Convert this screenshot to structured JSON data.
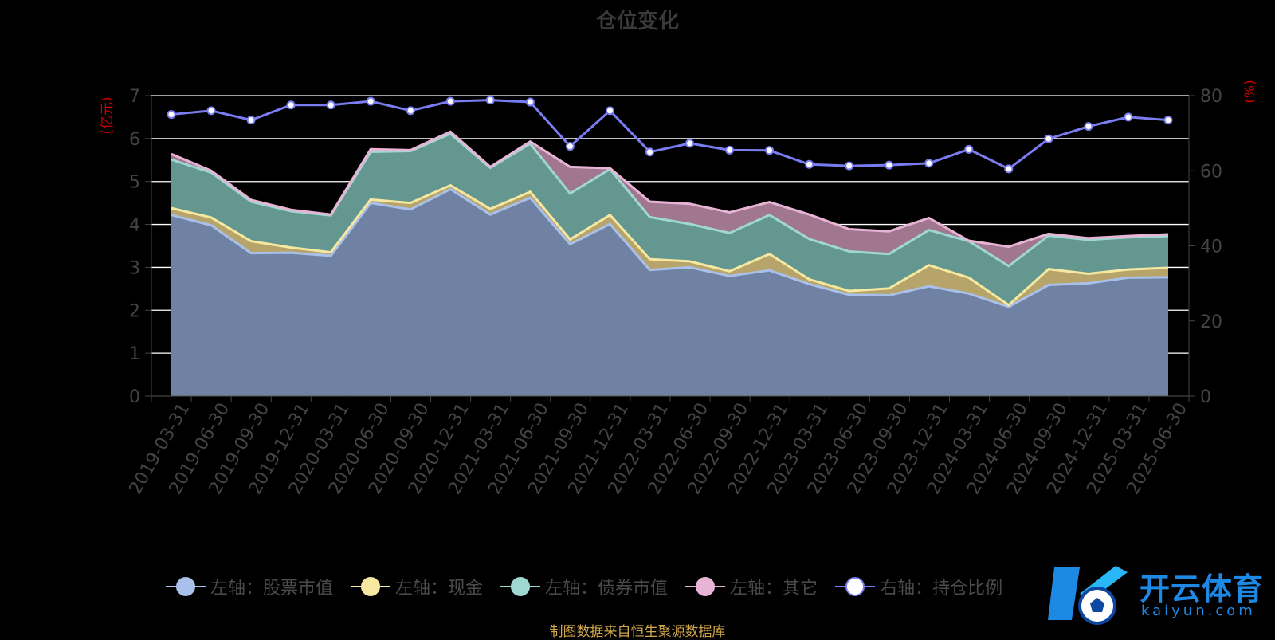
{
  "title": "仓位变化",
  "source_note": "制图数据来自恒生聚源数据库",
  "watermark": {
    "brand": "开云体育",
    "domain": "kaiyun.com"
  },
  "colors": {
    "stock": "#a9c0ea",
    "cash": "#f6e8a0",
    "bond": "#9fd8d3",
    "other": "#e8b4d6",
    "ratio": "#7a7df2",
    "axis_label": "#cc0000",
    "grid": "#ffffff",
    "tick_text": "#444444"
  },
  "chart_data": {
    "type": "area",
    "left_axis_label": "亿元",
    "right_axis_label": "%",
    "ylim_left": [
      0,
      7
    ],
    "ylim_right": [
      0,
      80
    ],
    "left_ticks": [
      0,
      1,
      2,
      3,
      4,
      5,
      6,
      7
    ],
    "right_ticks": [
      0,
      20,
      40,
      60,
      80
    ],
    "grid": true,
    "legend_position": "bottom",
    "x": [
      "2019-03-31",
      "2019-06-30",
      "2019-09-30",
      "2019-12-31",
      "2020-03-31",
      "2020-06-30",
      "2020-09-30",
      "2020-12-31",
      "2021-03-31",
      "2021-06-30",
      "2021-09-30",
      "2021-12-31",
      "2022-03-31",
      "2022-06-30",
      "2022-09-30",
      "2022-12-31",
      "2023-03-31",
      "2023-06-30",
      "2023-09-30",
      "2023-12-31",
      "2024-03-31",
      "2024-06-30",
      "2024-09-30",
      "2024-12-31",
      "2025-03-31",
      "2025-06-30"
    ],
    "series": [
      {
        "name": "左轴：股票市值",
        "key": "stock",
        "axis": "left",
        "stacked": true,
        "values": [
          4.22,
          3.98,
          3.33,
          3.34,
          3.27,
          4.5,
          4.35,
          4.82,
          4.23,
          4.62,
          3.54,
          4.01,
          2.94,
          3.0,
          2.8,
          2.93,
          2.61,
          2.36,
          2.35,
          2.56,
          2.39,
          2.08,
          2.59,
          2.63,
          2.76,
          2.77
        ]
      },
      {
        "name": "左轴：现金",
        "key": "cash",
        "axis": "left",
        "stacked": true,
        "values": [
          0.16,
          0.18,
          0.28,
          0.12,
          0.08,
          0.08,
          0.15,
          0.09,
          0.13,
          0.14,
          0.11,
          0.21,
          0.25,
          0.14,
          0.11,
          0.38,
          0.11,
          0.09,
          0.16,
          0.49,
          0.37,
          0.04,
          0.37,
          0.22,
          0.19,
          0.22
        ]
      },
      {
        "name": "左轴：债券市值",
        "key": "bond",
        "axis": "left",
        "stacked": true,
        "values": [
          1.13,
          1.05,
          0.92,
          0.85,
          0.86,
          1.11,
          1.21,
          1.2,
          0.96,
          1.12,
          1.07,
          1.07,
          0.98,
          0.87,
          0.89,
          0.91,
          0.94,
          0.92,
          0.8,
          0.82,
          0.85,
          0.91,
          0.78,
          0.79,
          0.75,
          0.74
        ]
      },
      {
        "name": "左轴：其它",
        "key": "other",
        "axis": "left",
        "stacked": true,
        "values": [
          0.13,
          0.04,
          0.04,
          0.03,
          0.02,
          0.06,
          0.02,
          0.05,
          0.02,
          0.05,
          0.62,
          0.02,
          0.36,
          0.47,
          0.48,
          0.3,
          0.57,
          0.52,
          0.53,
          0.28,
          0.01,
          0.45,
          0.04,
          0.04,
          0.03,
          0.04
        ]
      },
      {
        "name": "右轴：持仓比例",
        "key": "ratio",
        "axis": "right",
        "stacked": false,
        "values": [
          75,
          76,
          73.5,
          77.5,
          77.5,
          78.5,
          76,
          78.5,
          78.8,
          78.3,
          66.5,
          76,
          65,
          67.3,
          65.5,
          65.4,
          61.7,
          61.3,
          61.5,
          62,
          65.7,
          60.5,
          68.5,
          71.8,
          74.3,
          73.5
        ]
      }
    ]
  }
}
